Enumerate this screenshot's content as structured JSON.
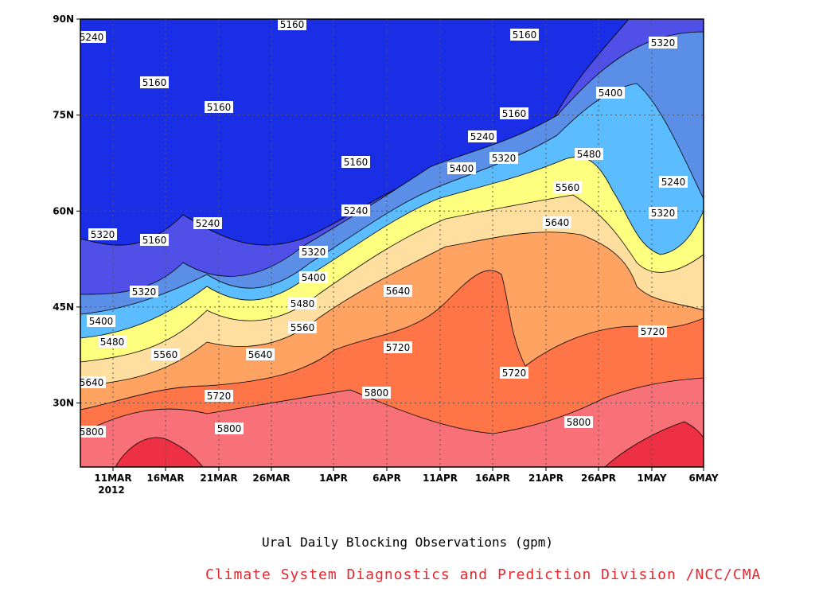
{
  "caption": "Ural Daily Blocking Observations (gpm)",
  "credit": "Climate System Diagnostics and Prediction Division /NCC/CMA",
  "credit_color": "#e8262b",
  "chart_data": {
    "type": "heatmap",
    "subtype": "filled-contour",
    "title": "",
    "xlabel": "",
    "ylabel": "",
    "x_ticks": [
      "11MAR",
      "16MAR",
      "21MAR",
      "26MAR",
      "1APR",
      "6APR",
      "11APR",
      "16APR",
      "21APR",
      "26APR",
      "1MAY",
      "6MAY"
    ],
    "x_year_label": "2012",
    "y_ticks": [
      "30N",
      "45N",
      "60N",
      "75N",
      "90N"
    ],
    "xlim": [
      "8MAR2012",
      "6MAY2012"
    ],
    "ylim_deg": [
      20,
      90
    ],
    "grid": true,
    "contour_levels": [
      5160,
      5240,
      5320,
      5400,
      5480,
      5560,
      5640,
      5720,
      5800
    ],
    "level_colors": [
      "#0c1577",
      "#1a2ee6",
      "#5050e8",
      "#5b8ee6",
      "#5bbcff",
      "#ffff7f",
      "#ffdf9f",
      "#ffa362",
      "#ff7547",
      "#f87078",
      "#ee3044"
    ],
    "contour_labels": [
      "5160",
      "5240",
      "5320",
      "5400",
      "5480",
      "5560",
      "5640",
      "5720",
      "5800"
    ]
  }
}
